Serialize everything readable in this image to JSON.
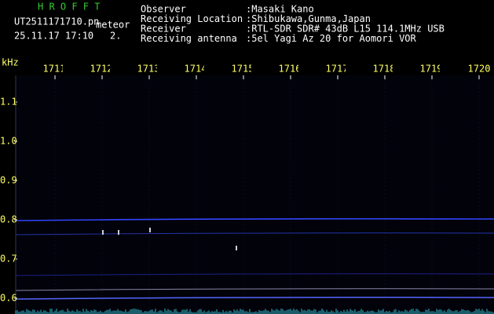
{
  "header": {
    "app": "H R O F F T",
    "file": "UT2511171710.pn",
    "mode": "meteor",
    "datetime": "25.11.17 17:10",
    "counter": "2.",
    "fields": [
      {
        "label": "Observer",
        "value": ":Masaki Kano"
      },
      {
        "label": "Receiving Location",
        "value": ":Shibukawa,Gunma,Japan"
      },
      {
        "label": "Receiver",
        "value": ":RTL-SDR SDR# 43dB L15 114.1MHz USB"
      },
      {
        "label": "Receiving antenna",
        "value": ":5el Yagi Az 20 for Aomori VOR"
      }
    ]
  },
  "axes": {
    "y_unit": "kHz",
    "x_labels": [
      "1711",
      "1712",
      "1713",
      "1714",
      "1715",
      "1716",
      "1717",
      "1718",
      "1719",
      "1720"
    ],
    "y_labels": [
      "1.1",
      "1.0",
      "0.9",
      "0.8",
      "0.7",
      "0.6"
    ]
  }
}
